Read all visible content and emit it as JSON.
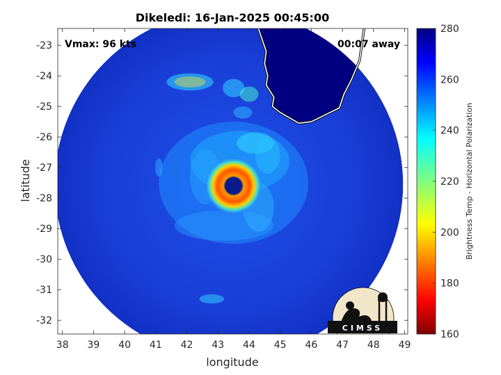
{
  "chart_data": {
    "type": "heatmap",
    "title": "Dikeledi: 16-Jan-2025 00:45:00",
    "xlabel": "longitude",
    "ylabel": "latitude",
    "xlim": [
      37.85,
      49.1
    ],
    "ylim": [
      -32.45,
      -22.45
    ],
    "xticks": [
      38,
      39,
      40,
      41,
      42,
      43,
      44,
      45,
      46,
      47,
      48,
      49
    ],
    "yticks": [
      -23,
      -24,
      -25,
      -26,
      -27,
      -28,
      -29,
      -30,
      -31,
      -32
    ],
    "annotations": {
      "vmax": "Vmax: 96 kts",
      "time_offset": "00:07 away"
    },
    "colorbar": {
      "label": "Brightness Temp - Horizontal Polarization",
      "range": [
        160,
        280
      ],
      "ticks": [
        280,
        260,
        240,
        220,
        200,
        180,
        160
      ],
      "colormap": "jet"
    },
    "storm_center": {
      "lon": 43.5,
      "lat": -27.6
    },
    "swath": {
      "center_lon": 43.35,
      "center_lat": -27.55,
      "radius_deg": 5.6
    },
    "coastline": "Madagascar (southwest coast)",
    "grid": false,
    "logo": "CIMSS",
    "colors": {
      "background_field": "#1133cc",
      "land": "#000080",
      "coastline": "#ffffff",
      "eyewall": "#ff6a00"
    }
  }
}
